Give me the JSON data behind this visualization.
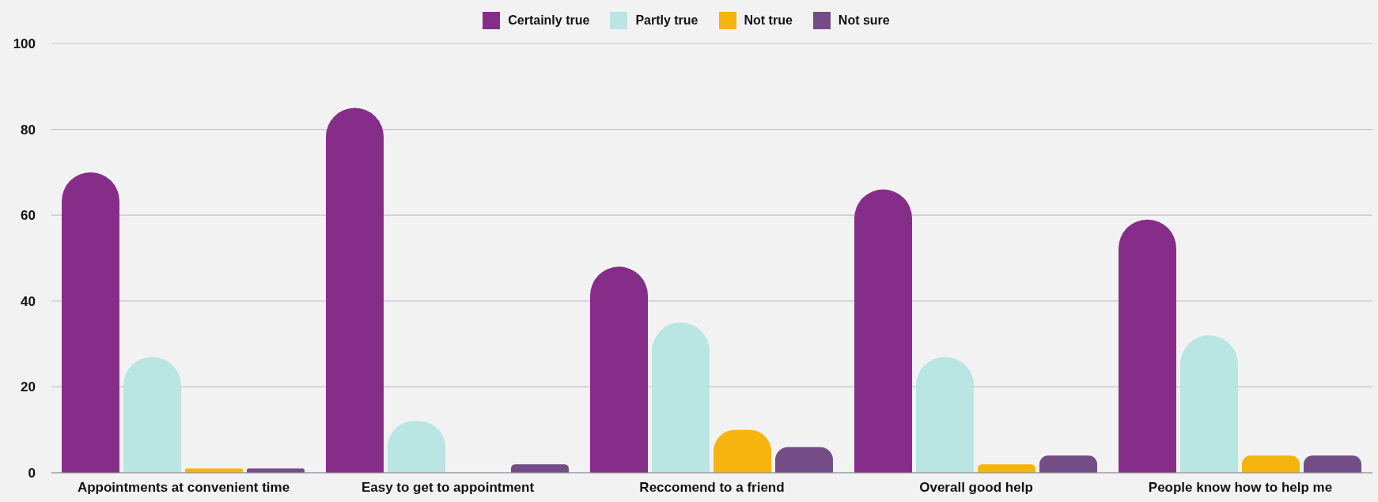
{
  "chart_data": {
    "type": "bar",
    "categories": [
      "Appointments at convenient time",
      "Easy to get to appointment",
      "Reccomend to a friend",
      "Overall good help",
      "People know how to help me"
    ],
    "series": [
      {
        "name": "Certainly true",
        "color": "#862d8a",
        "values": [
          70,
          85,
          48,
          66,
          59
        ]
      },
      {
        "name": "Partly true",
        "color": "#b9e5e3",
        "values": [
          27,
          12,
          35,
          27,
          32
        ]
      },
      {
        "name": "Not true",
        "color": "#f6b40f",
        "values": [
          1,
          0,
          10,
          2,
          4
        ]
      },
      {
        "name": "Not sure",
        "color": "#744d86",
        "values": [
          1,
          2,
          6,
          4,
          4
        ]
      }
    ],
    "ylim": [
      0,
      100
    ],
    "yticks": [
      0,
      20,
      40,
      60,
      80,
      100
    ],
    "grid": "y",
    "legend": "top"
  }
}
